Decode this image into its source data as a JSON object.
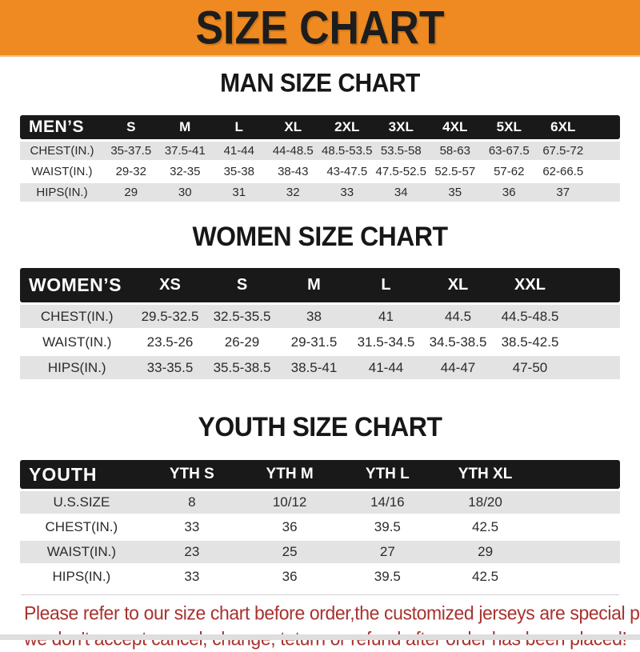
{
  "banner": {
    "title": "SIZE CHART"
  },
  "colors": {
    "banner_bg": "#EE8A21",
    "banner_text": "#1d1d1d",
    "header_bar": "#191919",
    "row_gray": "#E3E3E3",
    "footer_red": "#A8322E"
  },
  "sections": [
    {
      "title": "MAN SIZE CHART",
      "header_label": "MEN’S",
      "columns": [
        "S",
        "M",
        "L",
        "XL",
        "2XL",
        "3XL",
        "4XL",
        "5XL",
        "6XL"
      ],
      "rows": [
        {
          "label": "CHEST(IN.)",
          "values": [
            "35-37.5",
            "37.5-41",
            "41-44",
            "44-48.5",
            "48.5-53.5",
            "53.5-58",
            "58-63",
            "63-67.5",
            "67.5-72"
          ]
        },
        {
          "label": "WAIST(IN.)",
          "values": [
            "29-32",
            "32-35",
            "35-38",
            "38-43",
            "43-47.5",
            "47.5-52.5",
            "52.5-57",
            "57-62",
            "62-66.5"
          ]
        },
        {
          "label": "HIPS(IN.)",
          "values": [
            "29",
            "30",
            "31",
            "32",
            "33",
            "34",
            "35",
            "36",
            "37"
          ]
        }
      ]
    },
    {
      "title": "WOMEN SIZE CHART",
      "header_label": "WOMEN’S",
      "columns": [
        "XS",
        "S",
        "M",
        "L",
        "XL",
        "XXL"
      ],
      "rows": [
        {
          "label": "CHEST(IN.)",
          "values": [
            "29.5-32.5",
            "32.5-35.5",
            "38",
            "41",
            "44.5",
            "44.5-48.5"
          ]
        },
        {
          "label": "WAIST(IN.)",
          "values": [
            "23.5-26",
            "26-29",
            "29-31.5",
            "31.5-34.5",
            "34.5-38.5",
            "38.5-42.5"
          ]
        },
        {
          "label": "HIPS(IN.)",
          "values": [
            "33-35.5",
            "35.5-38.5",
            "38.5-41",
            "41-44",
            "44-47",
            "47-50"
          ]
        }
      ]
    },
    {
      "title": "YOUTH SIZE CHART",
      "header_label": "YOUTH",
      "columns": [
        "YTH S",
        "YTH M",
        "YTH L",
        "YTH XL"
      ],
      "rows": [
        {
          "label": "U.S.SIZE",
          "values": [
            "8",
            "10/12",
            "14/16",
            "18/20"
          ]
        },
        {
          "label": "CHEST(IN.)",
          "values": [
            "33",
            "36",
            "39.5",
            "42.5"
          ]
        },
        {
          "label": "WAIST(IN.)",
          "values": [
            "23",
            "25",
            "27",
            "29"
          ]
        },
        {
          "label": "HIPS(IN.)",
          "values": [
            "33",
            "36",
            "39.5",
            "42.5"
          ]
        }
      ]
    }
  ],
  "footer": {
    "line1": "Please refer to our size chart before order,the customized jerseys are special products,",
    "line2": "we don't accept cancel, change, teturn or refund after order has been placed!"
  }
}
